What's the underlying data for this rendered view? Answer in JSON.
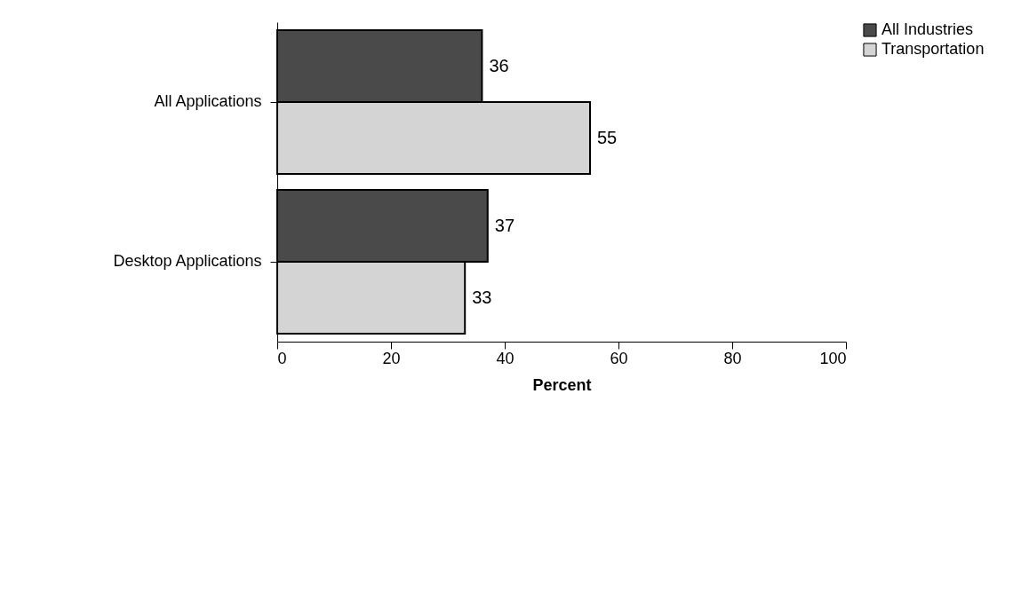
{
  "chart_data": {
    "type": "bar",
    "orientation": "horizontal",
    "categories": [
      "All Applications",
      "Desktop Applications"
    ],
    "series": [
      {
        "name": "All Industries",
        "color": "#4a4a4a",
        "values": [
          36,
          37
        ]
      },
      {
        "name": "Transportation",
        "color": "#d4d4d4",
        "values": [
          55,
          33
        ]
      }
    ],
    "xlabel": "Percent",
    "xlim": [
      0,
      100
    ],
    "xticks": [
      0,
      20,
      40,
      60,
      80,
      100
    ],
    "data_labels": true,
    "legend": "right",
    "grid": false
  }
}
